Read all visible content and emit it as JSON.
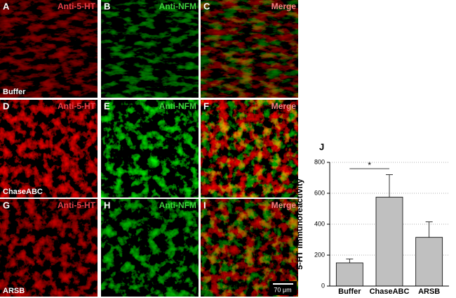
{
  "panels": [
    {
      "letter": "A",
      "label": "Anti-5-HT"
    },
    {
      "letter": "B",
      "label": "Anti-NFM"
    },
    {
      "letter": "C",
      "label": "Merge"
    },
    {
      "letter": "D",
      "label": "Anti-5-HT"
    },
    {
      "letter": "E",
      "label": "Anti-NFM"
    },
    {
      "letter": "F",
      "label": "Merge"
    },
    {
      "letter": "G",
      "label": "Anti-5-HT"
    },
    {
      "letter": "H",
      "label": "Anti-NFM"
    },
    {
      "letter": "I",
      "label": "Merge"
    }
  ],
  "row_labels": [
    "Buffer",
    "ChaseABC",
    "ARSB"
  ],
  "scale_bar": "70 μm",
  "chart_data": {
    "type": "bar",
    "panel_label": "J",
    "y_label": "5-HT immunoreactivity",
    "categories": [
      "Buffer",
      "ChaseABC",
      "ARSB"
    ],
    "values": [
      150,
      575,
      315
    ],
    "errors": [
      25,
      145,
      100
    ],
    "color": "#c0c0c0",
    "ylim": [
      0,
      800
    ],
    "yticks": [
      0,
      200,
      400,
      600,
      800
    ],
    "grid": true,
    "annotation": "*"
  }
}
